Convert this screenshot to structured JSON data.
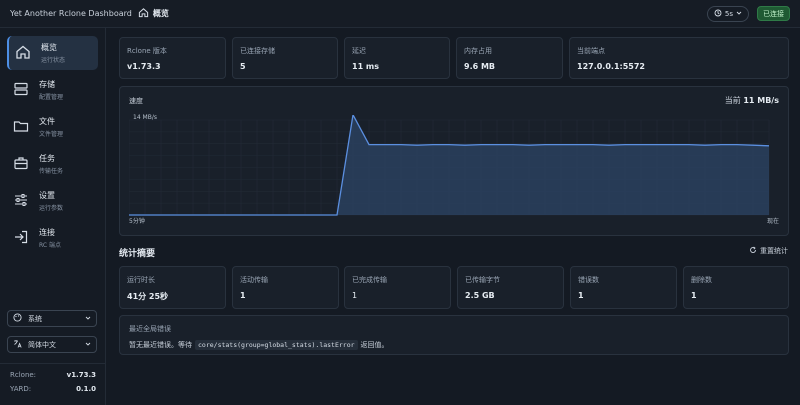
{
  "app": {
    "title": "Yet Another Rclone Dashboard"
  },
  "breadcrumb": {
    "label": "概览"
  },
  "topbar": {
    "refresh_label": "5s",
    "connection_label": "已连接"
  },
  "sidebar": {
    "items": [
      {
        "label": "概览",
        "sub": "运行状态"
      },
      {
        "label": "存储",
        "sub": "配置管理"
      },
      {
        "label": "文件",
        "sub": "文件管理"
      },
      {
        "label": "任务",
        "sub": "传输任务"
      },
      {
        "label": "设置",
        "sub": "运行参数"
      },
      {
        "label": "连接",
        "sub": "RC 端点"
      }
    ],
    "theme_label": "系统",
    "language_label": "简体中文",
    "versions": [
      {
        "key": "Rclone:",
        "value": "v1.73.3"
      },
      {
        "key": "YARD:",
        "value": "0.1.0"
      }
    ]
  },
  "info_cards": [
    {
      "label": "Rclone 版本",
      "value": "v1.73.3"
    },
    {
      "label": "已连接存储",
      "value": "5"
    },
    {
      "label": "延迟",
      "value": "11 ms"
    },
    {
      "label": "内存占用",
      "value": "9.6 MB"
    },
    {
      "label": "当前端点",
      "value": "127.0.0.1:5572"
    }
  ],
  "speed_chart": {
    "title": "速度",
    "current_prefix": "当前",
    "current_value": "11 MB/s",
    "y_label": "14 MB/s",
    "x_start_label": "5分钟",
    "x_end_label": "现在"
  },
  "chart_data": {
    "type": "area",
    "title": "速度",
    "ylabel": "14 MB/s",
    "x_labels": [
      "5分钟",
      "现在"
    ],
    "ylim": [
      0,
      14
    ],
    "x": [
      0,
      1,
      2,
      3,
      4,
      5,
      6,
      7,
      8,
      9,
      10,
      11,
      12,
      13,
      14,
      15,
      16,
      17,
      18,
      19,
      20,
      21,
      22,
      23,
      24,
      25,
      26,
      27,
      28,
      29,
      30,
      31,
      32,
      33,
      34,
      35,
      36,
      37,
      38,
      39,
      40
    ],
    "series": [
      {
        "values": [
          0,
          0,
          0,
          0,
          0,
          0,
          0,
          0,
          0,
          0,
          0,
          0,
          0,
          0,
          16.5,
          11.6,
          11.6,
          11.6,
          11.5,
          11.6,
          11.6,
          11.5,
          11.6,
          11.6,
          11.6,
          11.5,
          11.6,
          11.6,
          11.6,
          11.6,
          11.5,
          11.6,
          11.6,
          11.6,
          11.6,
          11.6,
          11.5,
          11.6,
          11.6,
          11.5,
          11.4
        ]
      }
    ],
    "grid": true,
    "color": "#5b8fe0"
  },
  "stats": {
    "title": "统计摘要",
    "reset_label": "重置统计",
    "cards": [
      {
        "label": "运行时长",
        "value": "41分 25秒"
      },
      {
        "label": "活动传输",
        "value": "1"
      },
      {
        "label": "已完成传输",
        "value": "1"
      },
      {
        "label": "已传输字节",
        "value": "2.5 GB"
      },
      {
        "label": "错误数",
        "value": "1"
      },
      {
        "label": "删除数",
        "value": "1"
      }
    ]
  },
  "error_panel": {
    "title": "最近全局错误",
    "text_before": "暂无最近错误。等待",
    "code": "core/stats(group=global_stats).lastError",
    "text_after": "返回值。"
  },
  "colors": {
    "accent": "#4d8fe6",
    "connected": "#1f5a33",
    "chart_line": "#5b8fe0"
  }
}
